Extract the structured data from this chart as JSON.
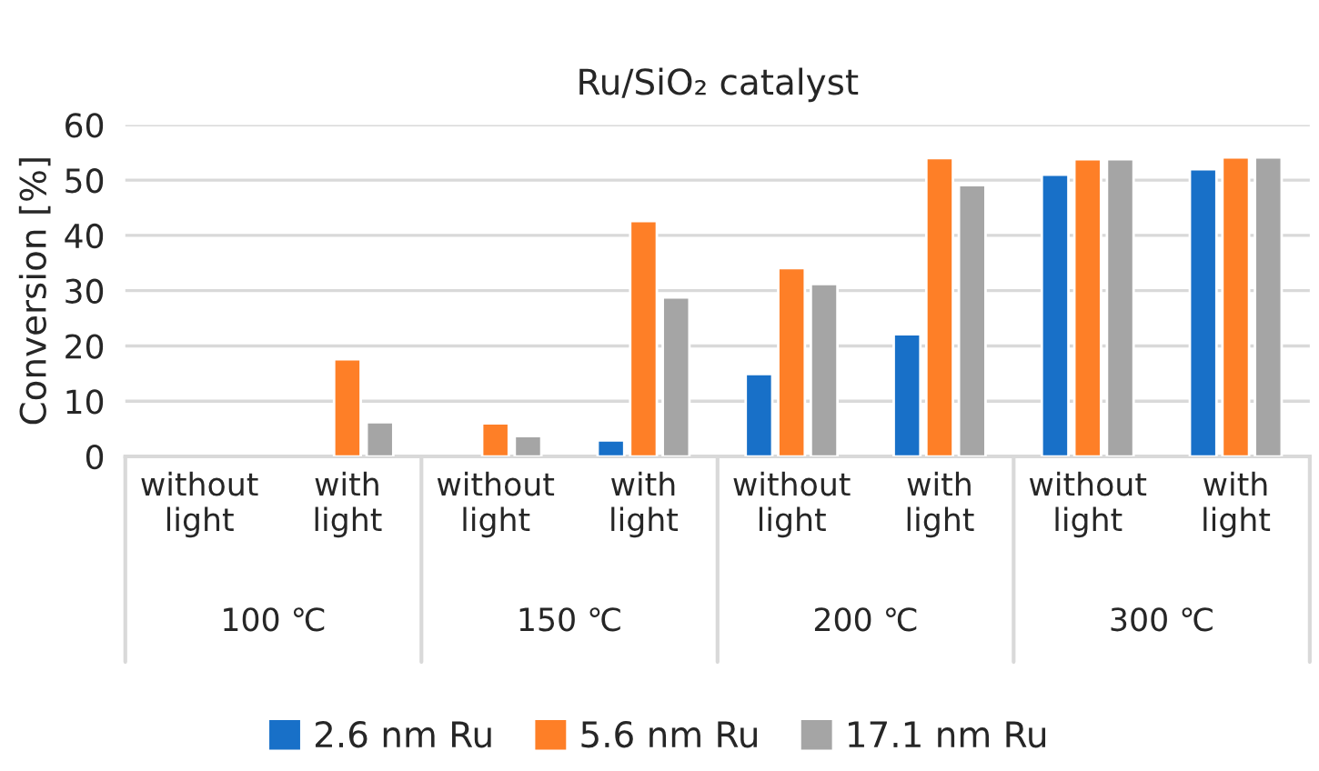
{
  "chart_data": {
    "type": "bar",
    "title": "Ru/SiO₂ catalyst",
    "ylabel": "Conversion [%]",
    "categories": [
      "without light",
      "with light",
      "without light",
      "with light",
      "without light",
      "with light",
      "without light",
      "with light"
    ],
    "series": [
      {
        "name": "2.6 nm Ru",
        "color": "#1870c8",
        "values": [
          null,
          null,
          null,
          2.9,
          14.9,
          22.1,
          51.0,
          52.0
        ]
      },
      {
        "name": "5.6 nm Ru",
        "color": "#fe7f27",
        "values": [
          null,
          17.6,
          6.0,
          42.6,
          34.1,
          54.0,
          53.8,
          54.1
        ]
      },
      {
        "name": "17.1 nm Ru",
        "color": "#a5a5a5",
        "values": [
          null,
          6.2,
          3.7,
          28.8,
          31.2,
          49.1,
          53.8,
          54.1
        ]
      }
    ],
    "annotations": [
      "100 ℃",
      "150 ℃",
      "200 ℃",
      "300 ℃"
    ],
    "ylim": [
      0,
      60
    ],
    "yticks": [
      0,
      10,
      20,
      30,
      40,
      50,
      60
    ],
    "grid": "y",
    "legend": "bottom"
  }
}
